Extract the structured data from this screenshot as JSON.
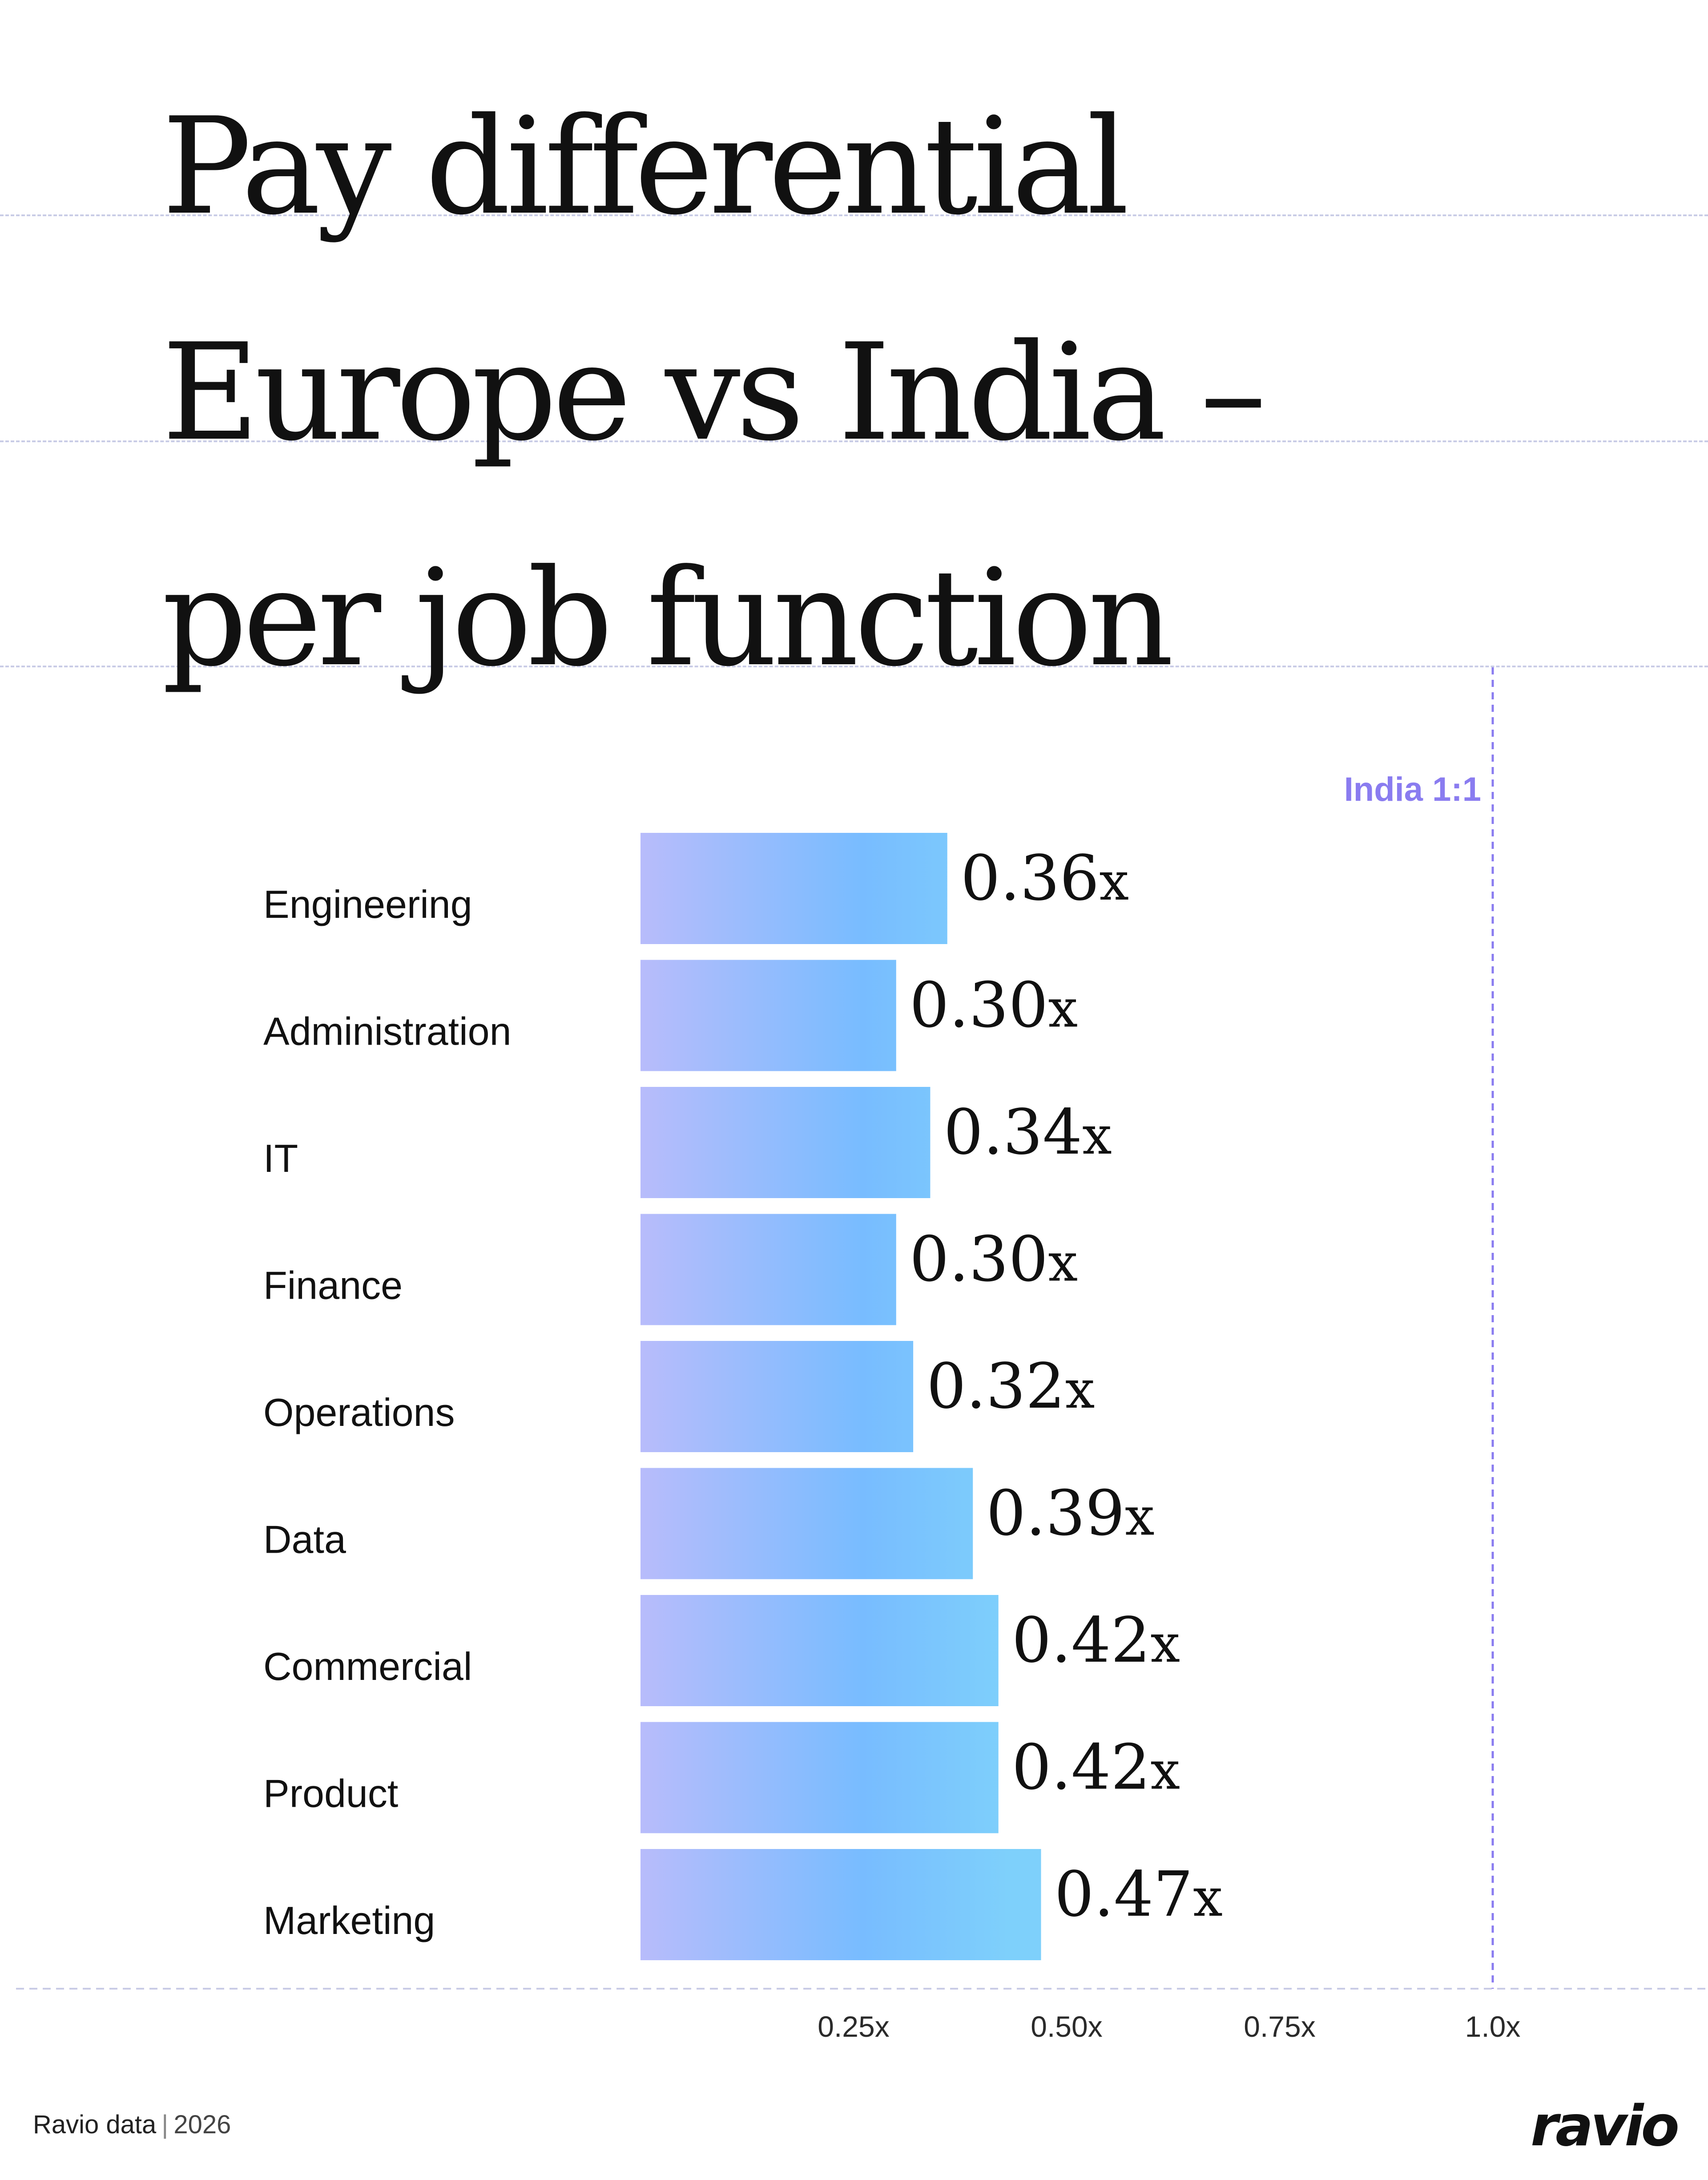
{
  "title": {
    "lines": [
      "Pay differential",
      "Europe vs India –",
      "per job function"
    ]
  },
  "chart_data": {
    "type": "bar",
    "orientation": "horizontal",
    "categories": [
      "Engineering",
      "Administration",
      "IT",
      "Finance",
      "Operations",
      "Data",
      "Commercial",
      "Product",
      "Marketing"
    ],
    "values": [
      0.36,
      0.3,
      0.34,
      0.3,
      0.32,
      0.39,
      0.42,
      0.42,
      0.47
    ],
    "value_labels": [
      "0.36",
      "0.30",
      "0.34",
      "0.30",
      "0.32",
      "0.39",
      "0.42",
      "0.42",
      "0.47"
    ],
    "value_suffix": "x",
    "x_ticks": [
      0.25,
      0.5,
      0.75,
      1.0
    ],
    "x_tick_labels": [
      "0.25x",
      "0.50x",
      "0.75x",
      "1.0x"
    ],
    "reference_line": {
      "value": 1.0,
      "label": "India 1:1",
      "color": "#8a7cf0"
    },
    "bar_gradient": [
      "#b8bcfb",
      "#78bcff",
      "#7ed0fb"
    ],
    "grid": false,
    "legend": "none"
  },
  "footer": {
    "source": "Ravio data",
    "separator": "|",
    "year": "2026"
  },
  "logo": {
    "text": "ravio"
  }
}
